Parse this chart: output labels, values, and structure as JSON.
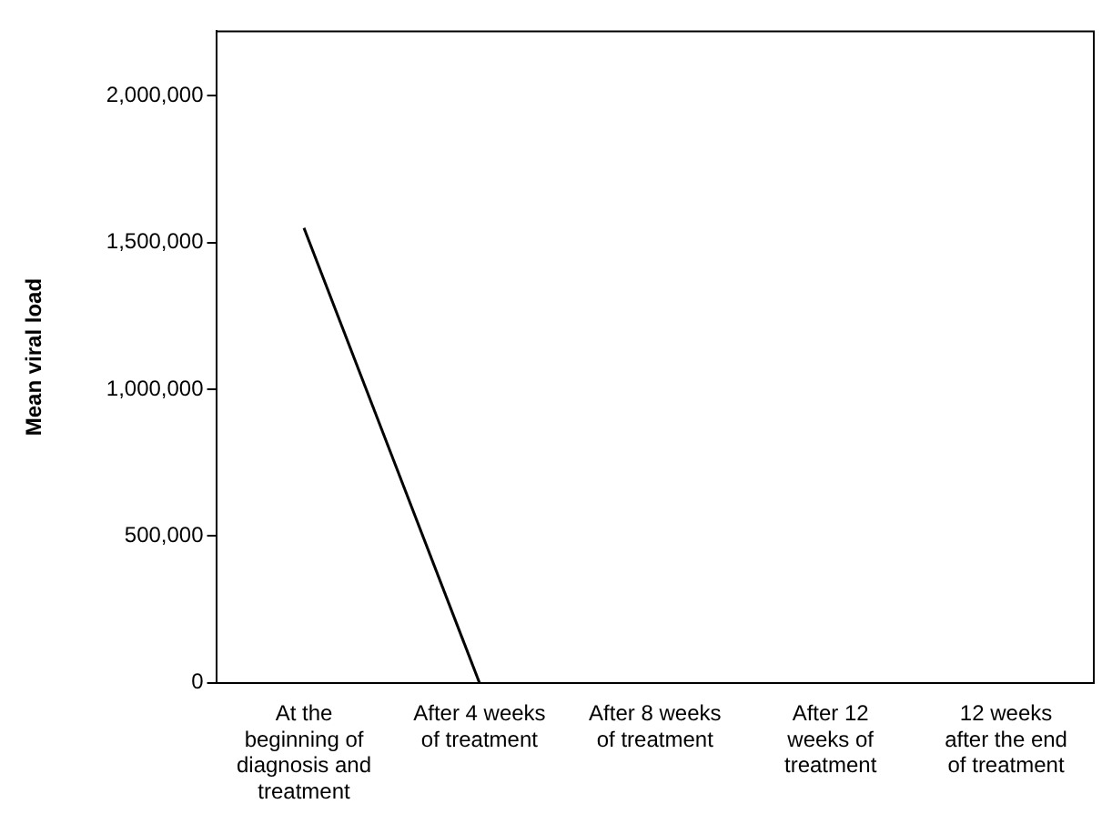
{
  "chart_data": {
    "type": "line",
    "ylabel": "Mean viral load",
    "categories": [
      "At the beginning of diagnosis and treatment",
      "After 4 weeks of treatment",
      "After 8 weeks of treatment",
      "After 12 weeks of treatment",
      "12 weeks after the end of treatment"
    ],
    "series": [
      {
        "color": "#000000",
        "values": [
          1550000,
          0,
          null,
          null,
          null
        ]
      }
    ],
    "ylim": [
      0,
      2220000
    ],
    "yticks": [
      0,
      {
        "value": 500000,
        "label": "500,000"
      },
      {
        "value": 1000000,
        "label": "1,000,000"
      },
      {
        "value": 1500000,
        "label": "1,500,000"
      },
      {
        "value": 2000000,
        "label": "2,000,000"
      }
    ],
    "grid": false,
    "legend": false,
    "marker": "none",
    "line_style": "solid"
  }
}
